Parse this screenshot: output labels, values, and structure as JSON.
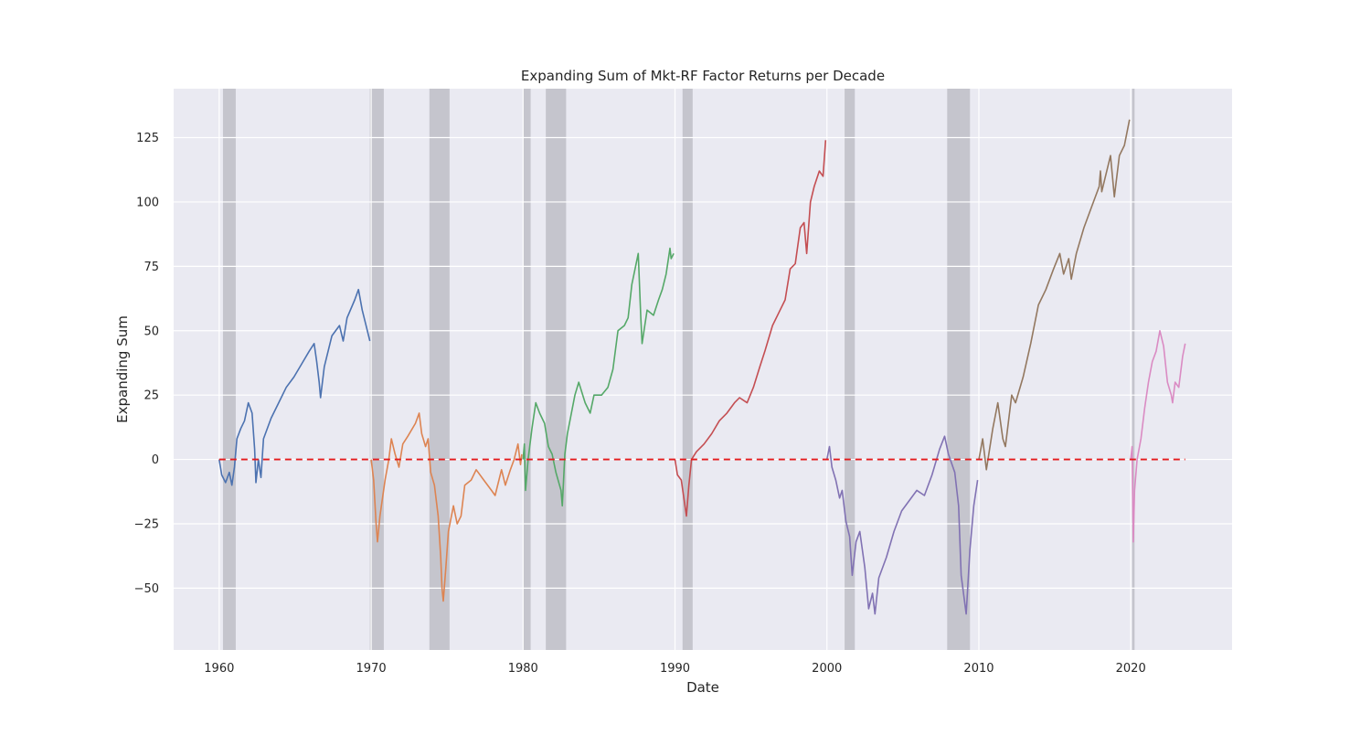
{
  "chart_data": {
    "type": "line",
    "title": "Expanding Sum of Mkt-RF Factor Returns per Decade",
    "xlabel": "Date",
    "ylabel": "Expanding Sum",
    "xlim": [
      "1957-01-01",
      "2026-09-01"
    ],
    "ylim": [
      -74,
      144
    ],
    "x_ticks": [
      {
        "value": "1960-01-01",
        "label": "1960"
      },
      {
        "value": "1970-01-01",
        "label": "1970"
      },
      {
        "value": "1980-01-01",
        "label": "1980"
      },
      {
        "value": "1990-01-01",
        "label": "1990"
      },
      {
        "value": "2000-01-01",
        "label": "2000"
      },
      {
        "value": "2010-01-01",
        "label": "2010"
      },
      {
        "value": "2020-01-01",
        "label": "2020"
      }
    ],
    "y_ticks": [
      {
        "value": -50,
        "label": "−50"
      },
      {
        "value": -25,
        "label": "−25"
      },
      {
        "value": 0,
        "label": "0"
      },
      {
        "value": 25,
        "label": "25"
      },
      {
        "value": 50,
        "label": "50"
      },
      {
        "value": 75,
        "label": "75"
      },
      {
        "value": 100,
        "label": "100"
      },
      {
        "value": 125,
        "label": "125"
      }
    ],
    "grid": true,
    "background_color": "#eaeaf2",
    "recession_color": "#a0a0a8",
    "recessions": [
      {
        "start": "1960-04-01",
        "end": "1961-02-01"
      },
      {
        "start": "1969-12-01",
        "end": "1970-11-01"
      },
      {
        "start": "1973-11-01",
        "end": "1975-03-01"
      },
      {
        "start": "1980-01-01",
        "end": "1980-07-01"
      },
      {
        "start": "1981-07-01",
        "end": "1982-11-01"
      },
      {
        "start": "1990-07-01",
        "end": "1991-03-01"
      },
      {
        "start": "2001-03-01",
        "end": "2001-11-01"
      },
      {
        "start": "2007-12-01",
        "end": "2009-06-01"
      },
      {
        "start": "2020-02-01",
        "end": "2020-04-01"
      }
    ],
    "reference_line": {
      "y": 0,
      "x_start": "1960-01-01",
      "x_end": "2023-08-01",
      "color": "#e41a1c",
      "style": "dashed"
    },
    "series": [
      {
        "color": "#4c72b0",
        "points": [
          [
            "1960-01-01",
            0
          ],
          [
            "1960-03-01",
            -6
          ],
          [
            "1960-06-01",
            -9
          ],
          [
            "1960-09-01",
            -5
          ],
          [
            "1960-11-01",
            -10
          ],
          [
            "1961-01-01",
            -3
          ],
          [
            "1961-03-01",
            8
          ],
          [
            "1961-06-01",
            12
          ],
          [
            "1961-09-01",
            15
          ],
          [
            "1961-12-01",
            22
          ],
          [
            "1962-03-01",
            18
          ],
          [
            "1962-05-01",
            4
          ],
          [
            "1962-06-01",
            -9
          ],
          [
            "1962-08-01",
            0
          ],
          [
            "1962-10-01",
            -7
          ],
          [
            "1962-12-01",
            8
          ],
          [
            "1963-06-01",
            16
          ],
          [
            "1963-12-01",
            22
          ],
          [
            "1964-06-01",
            28
          ],
          [
            "1964-12-01",
            32
          ],
          [
            "1965-06-01",
            37
          ],
          [
            "1965-12-01",
            42
          ],
          [
            "1966-04-01",
            45
          ],
          [
            "1966-06-01",
            38
          ],
          [
            "1966-08-01",
            30
          ],
          [
            "1966-09-01",
            24
          ],
          [
            "1966-12-01",
            36
          ],
          [
            "1967-06-01",
            48
          ],
          [
            "1967-12-01",
            52
          ],
          [
            "1968-03-01",
            46
          ],
          [
            "1968-06-01",
            55
          ],
          [
            "1968-12-01",
            62
          ],
          [
            "1969-03-01",
            66
          ],
          [
            "1969-06-01",
            58
          ],
          [
            "1969-09-01",
            52
          ],
          [
            "1969-12-01",
            46
          ]
        ]
      },
      {
        "color": "#dd8452",
        "points": [
          [
            "1970-01-01",
            0
          ],
          [
            "1970-03-01",
            -8
          ],
          [
            "1970-05-01",
            -25
          ],
          [
            "1970-06-01",
            -32
          ],
          [
            "1970-08-01",
            -22
          ],
          [
            "1970-10-01",
            -15
          ],
          [
            "1970-12-01",
            -8
          ],
          [
            "1971-03-01",
            0
          ],
          [
            "1971-05-01",
            8
          ],
          [
            "1971-08-01",
            2
          ],
          [
            "1971-11-01",
            -3
          ],
          [
            "1972-02-01",
            6
          ],
          [
            "1972-06-01",
            9
          ],
          [
            "1972-12-01",
            14
          ],
          [
            "1973-03-01",
            18
          ],
          [
            "1973-05-01",
            10
          ],
          [
            "1973-08-01",
            5
          ],
          [
            "1973-10-01",
            8
          ],
          [
            "1973-12-01",
            -5
          ],
          [
            "1974-03-01",
            -10
          ],
          [
            "1974-06-01",
            -22
          ],
          [
            "1974-08-01",
            -38
          ],
          [
            "1974-09-01",
            -50
          ],
          [
            "1974-10-01",
            -55
          ],
          [
            "1974-12-01",
            -42
          ],
          [
            "1975-02-01",
            -28
          ],
          [
            "1975-06-01",
            -18
          ],
          [
            "1975-09-01",
            -25
          ],
          [
            "1975-12-01",
            -22
          ],
          [
            "1976-03-01",
            -10
          ],
          [
            "1976-08-01",
            -8
          ],
          [
            "1976-12-01",
            -4
          ],
          [
            "1977-06-01",
            -8
          ],
          [
            "1977-12-01",
            -12
          ],
          [
            "1978-03-01",
            -14
          ],
          [
            "1978-08-01",
            -4
          ],
          [
            "1978-11-01",
            -10
          ],
          [
            "1979-03-01",
            -4
          ],
          [
            "1979-06-01",
            0
          ],
          [
            "1979-09-01",
            6
          ],
          [
            "1979-11-01",
            -2
          ],
          [
            "1979-12-01",
            2
          ]
        ]
      },
      {
        "color": "#55a868",
        "points": [
          [
            "1980-01-01",
            0
          ],
          [
            "1980-02-01",
            6
          ],
          [
            "1980-03-01",
            -12
          ],
          [
            "1980-05-01",
            0
          ],
          [
            "1980-08-01",
            12
          ],
          [
            "1980-11-01",
            22
          ],
          [
            "1981-02-01",
            18
          ],
          [
            "1981-06-01",
            14
          ],
          [
            "1981-09-01",
            5
          ],
          [
            "1981-12-01",
            2
          ],
          [
            "1982-03-01",
            -5
          ],
          [
            "1982-07-01",
            -12
          ],
          [
            "1982-08-01",
            -18
          ],
          [
            "1982-10-01",
            2
          ],
          [
            "1982-12-01",
            10
          ],
          [
            "1983-06-01",
            25
          ],
          [
            "1983-09-01",
            30
          ],
          [
            "1984-02-01",
            22
          ],
          [
            "1984-06-01",
            18
          ],
          [
            "1984-09-01",
            25
          ],
          [
            "1985-03-01",
            25
          ],
          [
            "1985-08-01",
            28
          ],
          [
            "1985-12-01",
            35
          ],
          [
            "1986-04-01",
            50
          ],
          [
            "1986-09-01",
            52
          ],
          [
            "1986-12-01",
            55
          ],
          [
            "1987-03-01",
            68
          ],
          [
            "1987-08-01",
            80
          ],
          [
            "1987-10-01",
            55
          ],
          [
            "1987-11-01",
            45
          ],
          [
            "1988-03-01",
            58
          ],
          [
            "1988-08-01",
            56
          ],
          [
            "1988-12-01",
            62
          ],
          [
            "1989-03-01",
            66
          ],
          [
            "1989-06-01",
            72
          ],
          [
            "1989-09-01",
            82
          ],
          [
            "1989-10-01",
            78
          ],
          [
            "1989-12-01",
            80
          ]
        ]
      },
      {
        "color": "#c44e52",
        "points": [
          [
            "1990-01-01",
            0
          ],
          [
            "1990-03-01",
            -6
          ],
          [
            "1990-06-01",
            -8
          ],
          [
            "1990-08-01",
            -15
          ],
          [
            "1990-10-01",
            -22
          ],
          [
            "1990-12-01",
            -10
          ],
          [
            "1991-02-01",
            0
          ],
          [
            "1991-06-01",
            3
          ],
          [
            "1991-12-01",
            6
          ],
          [
            "1992-06-01",
            10
          ],
          [
            "1992-12-01",
            15
          ],
          [
            "1993-06-01",
            18
          ],
          [
            "1993-12-01",
            22
          ],
          [
            "1994-04-01",
            24
          ],
          [
            "1994-10-01",
            22
          ],
          [
            "1995-03-01",
            28
          ],
          [
            "1995-08-01",
            36
          ],
          [
            "1995-12-01",
            42
          ],
          [
            "1996-06-01",
            52
          ],
          [
            "1996-12-01",
            58
          ],
          [
            "1997-04-01",
            62
          ],
          [
            "1997-08-01",
            74
          ],
          [
            "1997-12-01",
            76
          ],
          [
            "1998-04-01",
            90
          ],
          [
            "1998-07-01",
            92
          ],
          [
            "1998-09-01",
            80
          ],
          [
            "1998-12-01",
            100
          ],
          [
            "1999-03-01",
            106
          ],
          [
            "1999-07-01",
            112
          ],
          [
            "1999-10-01",
            110
          ],
          [
            "1999-12-01",
            124
          ]
        ]
      },
      {
        "color": "#8172b3",
        "points": [
          [
            "2000-01-01",
            0
          ],
          [
            "2000-03-01",
            5
          ],
          [
            "2000-05-01",
            -3
          ],
          [
            "2000-08-01",
            -8
          ],
          [
            "2000-11-01",
            -15
          ],
          [
            "2001-01-01",
            -12
          ],
          [
            "2001-04-01",
            -24
          ],
          [
            "2001-07-01",
            -30
          ],
          [
            "2001-09-01",
            -45
          ],
          [
            "2001-12-01",
            -32
          ],
          [
            "2002-03-01",
            -28
          ],
          [
            "2002-07-01",
            -42
          ],
          [
            "2002-10-01",
            -58
          ],
          [
            "2003-01-01",
            -52
          ],
          [
            "2003-03-01",
            -60
          ],
          [
            "2003-06-01",
            -46
          ],
          [
            "2003-12-01",
            -38
          ],
          [
            "2004-06-01",
            -28
          ],
          [
            "2004-12-01",
            -20
          ],
          [
            "2005-06-01",
            -16
          ],
          [
            "2005-12-01",
            -12
          ],
          [
            "2006-06-01",
            -14
          ],
          [
            "2006-12-01",
            -6
          ],
          [
            "2007-06-01",
            4
          ],
          [
            "2007-10-01",
            9
          ],
          [
            "2008-01-01",
            2
          ],
          [
            "2008-06-01",
            -5
          ],
          [
            "2008-09-01",
            -18
          ],
          [
            "2008-11-01",
            -45
          ],
          [
            "2009-03-01",
            -60
          ],
          [
            "2009-06-01",
            -35
          ],
          [
            "2009-09-01",
            -18
          ],
          [
            "2009-12-01",
            -8
          ]
        ]
      },
      {
        "color": "#937860",
        "points": [
          [
            "2010-01-01",
            0
          ],
          [
            "2010-04-01",
            8
          ],
          [
            "2010-07-01",
            -4
          ],
          [
            "2010-12-01",
            12
          ],
          [
            "2011-04-01",
            22
          ],
          [
            "2011-08-01",
            8
          ],
          [
            "2011-10-01",
            5
          ],
          [
            "2012-03-01",
            25
          ],
          [
            "2012-06-01",
            22
          ],
          [
            "2012-12-01",
            32
          ],
          [
            "2013-06-01",
            45
          ],
          [
            "2013-12-01",
            60
          ],
          [
            "2014-06-01",
            66
          ],
          [
            "2014-12-01",
            74
          ],
          [
            "2015-05-01",
            80
          ],
          [
            "2015-08-01",
            72
          ],
          [
            "2015-12-01",
            78
          ],
          [
            "2016-02-01",
            70
          ],
          [
            "2016-06-01",
            80
          ],
          [
            "2016-12-01",
            90
          ],
          [
            "2017-06-01",
            98
          ],
          [
            "2017-12-01",
            106
          ],
          [
            "2018-01-01",
            112
          ],
          [
            "2018-02-01",
            104
          ],
          [
            "2018-09-01",
            118
          ],
          [
            "2018-12-01",
            102
          ],
          [
            "2019-04-01",
            118
          ],
          [
            "2019-08-01",
            122
          ],
          [
            "2019-12-01",
            132
          ]
        ]
      },
      {
        "color": "#da8bc3",
        "points": [
          [
            "2020-01-01",
            0
          ],
          [
            "2020-02-01",
            5
          ],
          [
            "2020-03-01",
            -32
          ],
          [
            "2020-04-01",
            -12
          ],
          [
            "2020-06-01",
            0
          ],
          [
            "2020-09-01",
            8
          ],
          [
            "2020-12-01",
            20
          ],
          [
            "2021-03-01",
            30
          ],
          [
            "2021-06-01",
            38
          ],
          [
            "2021-09-01",
            42
          ],
          [
            "2021-12-01",
            50
          ],
          [
            "2022-03-01",
            44
          ],
          [
            "2022-06-01",
            30
          ],
          [
            "2022-09-01",
            25
          ],
          [
            "2022-10-01",
            22
          ],
          [
            "2022-12-01",
            30
          ],
          [
            "2023-03-01",
            28
          ],
          [
            "2023-06-01",
            40
          ],
          [
            "2023-08-01",
            45
          ]
        ]
      }
    ]
  }
}
